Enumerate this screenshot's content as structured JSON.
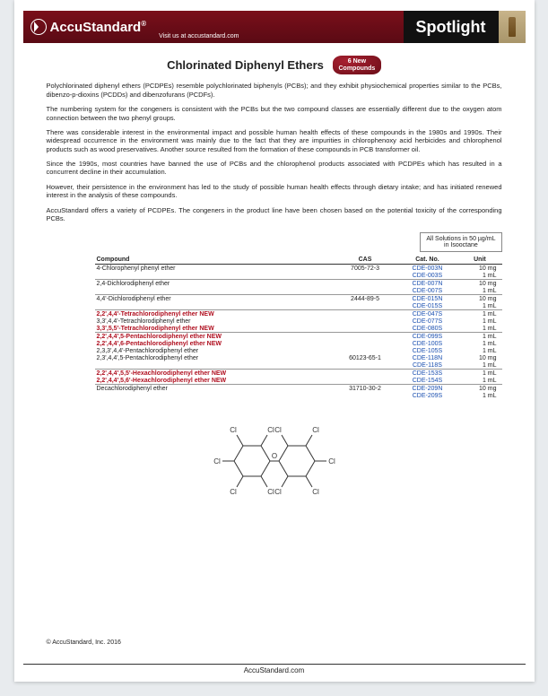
{
  "banner": {
    "brand": "AccuStandard",
    "reg": "®",
    "tagline": "Visit us at accustandard.com",
    "spotlight": "Spotlight"
  },
  "heading": {
    "title": "Chlorinated Diphenyl Ethers",
    "badge_line1": "6 New",
    "badge_line2": "Compounds"
  },
  "paragraphs": {
    "p1": "Polychlorinated diphenyl ethers (PCDPEs) resemble polychlorinated biphenyls (PCBs); and they exhibit physiochemical properties similar to the PCBs, dibenzo-p-dioxins (PCDDs) and dibenzofurans (PCDFs).",
    "p2": "The numbering system for the congeners is consistent with the PCBs but the two compound classes are essentially different due to the oxygen atom connection between the two phenyl groups.",
    "p3": "There was considerable interest in the environmental impact and possible human health effects of these compounds in the 1980s and 1990s. Their widespread occurrence in the environment was mainly due to the fact that they are impurities in chlorophenoxy acid herbicides and chlorophenol products such as wood preservatives. Another source resulted from the formation of these compounds in PCB transformer oil.",
    "p4": "Since the 1990s, most countries have banned the use of PCBs and the chlorophenol products associated with PCDPEs which has resulted in a concurrent decline in their accumulation.",
    "p5": "However, their persistence in the environment has led to the study of possible human health effects through dietary intake; and has initiated renewed interest in the analysis of these compounds.",
    "p6": "AccuStandard offers a variety of PCDPEs. The congeners in the product line have been chosen based on the potential toxicity of the corresponding PCBs."
  },
  "note": {
    "line1": "All Solutions in 50 µg/mL",
    "line2": "in Isooctane"
  },
  "table": {
    "headers": {
      "compound": "Compound",
      "cas": "CAS",
      "cat": "Cat. No.",
      "unit": "Unit"
    },
    "rows": [
      {
        "sep": true,
        "compound": "4-Chlorophenyl phenyl ether",
        "new": false,
        "cas": "7005-72-3",
        "cats": [
          [
            "CDE-003N",
            "10 mg"
          ],
          [
            "CDE-003S",
            "1 mL"
          ]
        ]
      },
      {
        "sep": true,
        "compound": "2,4-Dichlorodiphenyl ether",
        "new": false,
        "cas": "",
        "cats": [
          [
            "CDE-007N",
            "10 mg"
          ],
          [
            "CDE-007S",
            "1 mL"
          ]
        ]
      },
      {
        "sep": true,
        "compound": "4,4'-Dichlorodiphenyl ether",
        "new": false,
        "cas": "2444-89-5",
        "cats": [
          [
            "CDE-015N",
            "10 mg"
          ],
          [
            "CDE-015S",
            "1 mL"
          ]
        ]
      },
      {
        "sep": true,
        "compound": "2,2',4,4'-Tetrachlorodiphenyl ether",
        "new": true,
        "cas": "",
        "cats": [
          [
            "CDE-047S",
            "1 mL"
          ]
        ]
      },
      {
        "sep": false,
        "compound": "3,3',4,4'-Tetrachlorodiphenyl ether",
        "new": false,
        "cas": "",
        "cats": [
          [
            "CDE-077S",
            "1 mL"
          ]
        ]
      },
      {
        "sep": false,
        "compound": "3,3',5,5'-Tetrachlorodiphenyl ether",
        "new": true,
        "cas": "",
        "cats": [
          [
            "CDE-080S",
            "1 mL"
          ]
        ]
      },
      {
        "sep": true,
        "compound": "2,2',4,4',5-Pentachlorodiphenyl ether",
        "new": true,
        "cas": "",
        "cats": [
          [
            "CDE-099S",
            "1 mL"
          ]
        ]
      },
      {
        "sep": false,
        "compound": "2,2',4,4',6-Pentachlorodiphenyl ether",
        "new": true,
        "cas": "",
        "cats": [
          [
            "CDE-100S",
            "1 mL"
          ]
        ]
      },
      {
        "sep": false,
        "compound": "2,3,3',4,4'-Pentachlorodiphenyl ether",
        "new": false,
        "cas": "",
        "cats": [
          [
            "CDE-105S",
            "1 mL"
          ]
        ]
      },
      {
        "sep": false,
        "compound": "2,3',4,4',5-Pentachlorodiphenyl ether",
        "new": false,
        "cas": "60123-65-1",
        "cats": [
          [
            "CDE-118N",
            "10 mg"
          ],
          [
            "CDE-118S",
            "1 mL"
          ]
        ]
      },
      {
        "sep": true,
        "compound": "2,2',4,4',5,5'-Hexachlorodiphenyl ether",
        "new": true,
        "cas": "",
        "cats": [
          [
            "CDE-153S",
            "1 mL"
          ]
        ]
      },
      {
        "sep": false,
        "compound": "2,2',4,4',5,6'-Hexachlorodiphenyl ether",
        "new": true,
        "cas": "",
        "cats": [
          [
            "CDE-154S",
            "1 mL"
          ]
        ]
      },
      {
        "sep": true,
        "compound": "Decachlorodiphenyl ether",
        "new": false,
        "cas": "31710-30-2",
        "cats": [
          [
            "CDE-209N",
            "10 mg"
          ],
          [
            "CDE-209S",
            "1 mL"
          ]
        ]
      }
    ],
    "new_label": "NEW"
  },
  "diagram": {
    "cl": "Cl",
    "o": "O"
  },
  "copyright": "© AccuStandard, Inc. 2016",
  "footer": "AccuStandard.com"
}
